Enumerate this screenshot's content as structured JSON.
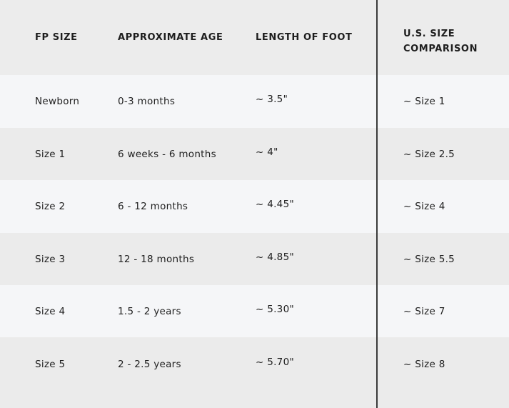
{
  "headers": [
    "FP SIZE",
    "APPROXIMATE AGE",
    "LENGTH OF FOOT",
    "U.S. SIZE COMPARISON"
  ],
  "header_us_lines": [
    "U.S. SIZE",
    "COMPARISON"
  ],
  "rows": [
    [
      "Newborn",
      "0-3 months",
      "~ 3.5\"",
      "~ Size 1"
    ],
    [
      "Size 1",
      "6 weeks - 6 months",
      "~ 4\"",
      "~ Size 2.5"
    ],
    [
      "Size 2",
      "6 - 12 months",
      "~ 4.45\"",
      "~ Size 4"
    ],
    [
      "Size 3",
      "12 - 18 months",
      "~ 4.85\"",
      "~ Size 5.5"
    ],
    [
      "Size 4",
      "1.5 - 2 years",
      "~ 5.30\"",
      "~ Size 7"
    ],
    [
      "Size 5",
      "2 - 2.5 years",
      "~ 5.70\"",
      "~ Size 8"
    ]
  ]
}
